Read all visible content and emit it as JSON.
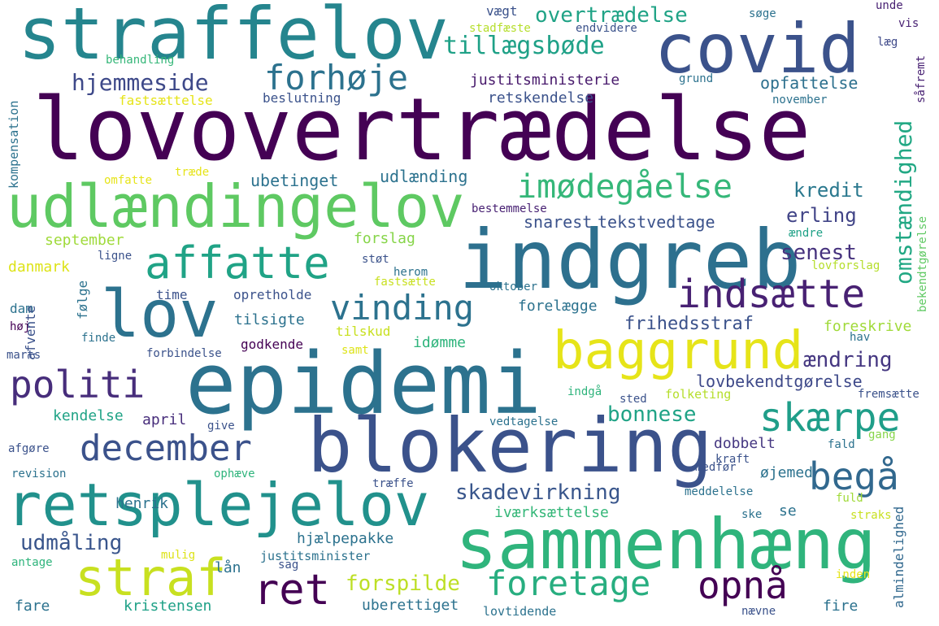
{
  "words": [
    {
      "text": "lovovertrædelse",
      "color": "#440154"
    },
    {
      "text": "epidemi",
      "color": "#2c728e"
    },
    {
      "text": "indgreb",
      "color": "#2d708e"
    },
    {
      "text": "blokering",
      "color": "#3b528b"
    },
    {
      "text": "sammenhæng",
      "color": "#2fb47c"
    },
    {
      "text": "straffelov",
      "color": "#25858e"
    },
    {
      "text": "covid",
      "color": "#3b528b"
    },
    {
      "text": "udlændingelov",
      "color": "#5ec962"
    },
    {
      "text": "retsplejelov",
      "color": "#21918c"
    },
    {
      "text": "lov",
      "color": "#2c728e"
    },
    {
      "text": "baggrund",
      "color": "#e6e419"
    },
    {
      "text": "straf",
      "color": "#c8e020"
    },
    {
      "text": "affatte",
      "color": "#20a386"
    },
    {
      "text": "politi",
      "color": "#472d7b"
    },
    {
      "text": "december",
      "color": "#3b528b"
    },
    {
      "text": "foretage",
      "color": "#28ae80"
    },
    {
      "text": "opnå",
      "color": "#440154"
    },
    {
      "text": "ret",
      "color": "#440154"
    },
    {
      "text": "vinding",
      "color": "#2c728e"
    },
    {
      "text": "indsætte",
      "color": "#482173"
    },
    {
      "text": "skærpe",
      "color": "#1f9e89"
    },
    {
      "text": "imødegåelse",
      "color": "#35b779"
    },
    {
      "text": "forhøje",
      "color": "#2c728e"
    },
    {
      "text": "begå",
      "color": "#31688e"
    },
    {
      "text": "omstændighed",
      "color": "#22a884"
    },
    {
      "text": "tillægsbøde",
      "color": "#1fa187"
    },
    {
      "text": "hjemmeside",
      "color": "#3e4989"
    },
    {
      "text": "overtrædelse",
      "color": "#20a386"
    },
    {
      "text": "forspilde",
      "color": "#bddf26"
    },
    {
      "text": "skadevirkning",
      "color": "#39568c"
    },
    {
      "text": "udmåling",
      "color": "#39558c"
    },
    {
      "text": "bonnese",
      "color": "#20a386"
    },
    {
      "text": "senest",
      "color": "#46327e"
    },
    {
      "text": "ændring",
      "color": "#453781"
    },
    {
      "text": "frihedsstraf",
      "color": "#3b528b"
    },
    {
      "text": "lovbekendtgørelse",
      "color": "#3e4989"
    },
    {
      "text": "erling",
      "color": "#414487"
    },
    {
      "text": "kredit",
      "color": "#2a788e"
    },
    {
      "text": "justitsministerie",
      "color": "#481a6c"
    },
    {
      "text": "opfattelse",
      "color": "#2d708e"
    },
    {
      "text": "retskendelse",
      "color": "#3b528b"
    },
    {
      "text": "ubetinget",
      "color": "#2c728e"
    },
    {
      "text": "udlænding",
      "color": "#2c728e"
    },
    {
      "text": "tekstvedtage",
      "color": "#3b528b"
    },
    {
      "text": "snarest",
      "color": "#3b528b"
    },
    {
      "text": "september",
      "color": "#9fda3a"
    },
    {
      "text": "danmark",
      "color": "#dde318"
    },
    {
      "text": "forslag",
      "color": "#86d549"
    },
    {
      "text": "kendelse",
      "color": "#20a386"
    },
    {
      "text": "april",
      "color": "#472d7b"
    },
    {
      "text": "henrik",
      "color": "#2c728e"
    },
    {
      "text": "dobbelt",
      "color": "#453781"
    },
    {
      "text": "øjemed",
      "color": "#2c728e"
    },
    {
      "text": "foreskrive",
      "color": "#a0da39"
    },
    {
      "text": "forelægge",
      "color": "#2c728e"
    },
    {
      "text": "tilsigte",
      "color": "#2c728e"
    },
    {
      "text": "idømme",
      "color": "#2fb47c"
    },
    {
      "text": "hjælpepakke",
      "color": "#2c728e"
    },
    {
      "text": "kristensen",
      "color": "#1fa187"
    },
    {
      "text": "uberettiget",
      "color": "#2c728e"
    },
    {
      "text": "almindelighed",
      "color": "#31688e"
    },
    {
      "text": "iværksættelse",
      "color": "#35b779"
    },
    {
      "text": "lån",
      "color": "#2c728e"
    },
    {
      "text": "fare",
      "color": "#2c728e"
    },
    {
      "text": "fire",
      "color": "#2c728e"
    },
    {
      "text": "dam",
      "color": "#2c728e"
    },
    {
      "text": "følge",
      "color": "#2c728e"
    },
    {
      "text": "afvente",
      "color": "#3b528b"
    },
    {
      "text": "time",
      "color": "#3b528b"
    },
    {
      "text": "opretholde",
      "color": "#3b528b"
    },
    {
      "text": "godkende",
      "color": "#440154"
    },
    {
      "text": "tilskud",
      "color": "#c8e020"
    },
    {
      "text": "vægt",
      "color": "#3b528b"
    },
    {
      "text": "stadfæste",
      "color": "#b5de2b"
    },
    {
      "text": "endvidere",
      "color": "#3b528b"
    },
    {
      "text": "søge",
      "color": "#2c728e"
    },
    {
      "text": "unde",
      "color": "#482173"
    },
    {
      "text": "vis",
      "color": "#482173"
    },
    {
      "text": "læg",
      "color": "#3e4989"
    },
    {
      "text": "såfremt",
      "color": "#482173"
    },
    {
      "text": "grund",
      "color": "#2c728e"
    },
    {
      "text": "november",
      "color": "#2c728e"
    },
    {
      "text": "behandling",
      "color": "#35b779"
    },
    {
      "text": "fastsættelse",
      "color": "#e6e419"
    },
    {
      "text": "beslutning",
      "color": "#3b528b"
    },
    {
      "text": "kompensation",
      "color": "#2c728e"
    },
    {
      "text": "omfatte",
      "color": "#e6e419"
    },
    {
      "text": "træde",
      "color": "#e6e419"
    },
    {
      "text": "bestemmelse",
      "color": "#482173"
    },
    {
      "text": "ændre",
      "color": "#1fa187"
    },
    {
      "text": "lovforslag",
      "color": "#b5de2b"
    },
    {
      "text": "bekendtgørelse",
      "color": "#5ec962"
    },
    {
      "text": "ligne",
      "color": "#3b528b"
    },
    {
      "text": "støt",
      "color": "#3b528b"
    },
    {
      "text": "herom",
      "color": "#2c728e"
    },
    {
      "text": "fastsætte",
      "color": "#c8e020"
    },
    {
      "text": "oktober",
      "color": "#2c728e"
    },
    {
      "text": "høj",
      "color": "#440154"
    },
    {
      "text": "finde",
      "color": "#2c728e"
    },
    {
      "text": "marts",
      "color": "#3b528b"
    },
    {
      "text": "forbindelse",
      "color": "#3b528b"
    },
    {
      "text": "samt",
      "color": "#dde318"
    },
    {
      "text": "hav",
      "color": "#2c728e"
    },
    {
      "text": "indgå",
      "color": "#2fb47c"
    },
    {
      "text": "sted",
      "color": "#3b528b"
    },
    {
      "text": "folketing",
      "color": "#b5de2b"
    },
    {
      "text": "fremsætte",
      "color": "#3b528b"
    },
    {
      "text": "give",
      "color": "#3b528b"
    },
    {
      "text": "vedtagelse",
      "color": "#2c728e"
    },
    {
      "text": "gang",
      "color": "#86d549"
    },
    {
      "text": "fald",
      "color": "#2c728e"
    },
    {
      "text": "afgøre",
      "color": "#3b528b"
    },
    {
      "text": "kraft",
      "color": "#3b528b"
    },
    {
      "text": "medfør",
      "color": "#3b528b"
    },
    {
      "text": "revision",
      "color": "#2c728e"
    },
    {
      "text": "ophæve",
      "color": "#2fb47c"
    },
    {
      "text": "træffe",
      "color": "#3b528b"
    },
    {
      "text": "meddelelse",
      "color": "#2c728e"
    },
    {
      "text": "fuld",
      "color": "#a0da39"
    },
    {
      "text": "se",
      "color": "#2c728e"
    },
    {
      "text": "ske",
      "color": "#2c728e"
    },
    {
      "text": "straks",
      "color": "#c8e020"
    },
    {
      "text": "antage",
      "color": "#2fb47c"
    },
    {
      "text": "mulig",
      "color": "#dde318"
    },
    {
      "text": "sag",
      "color": "#3b528b"
    },
    {
      "text": "justitsminister",
      "color": "#2c728e"
    },
    {
      "text": "inden",
      "color": "#e6e419"
    },
    {
      "text": "lovtidende",
      "color": "#2c728e"
    },
    {
      "text": "nævne",
      "color": "#3b528b"
    }
  ]
}
